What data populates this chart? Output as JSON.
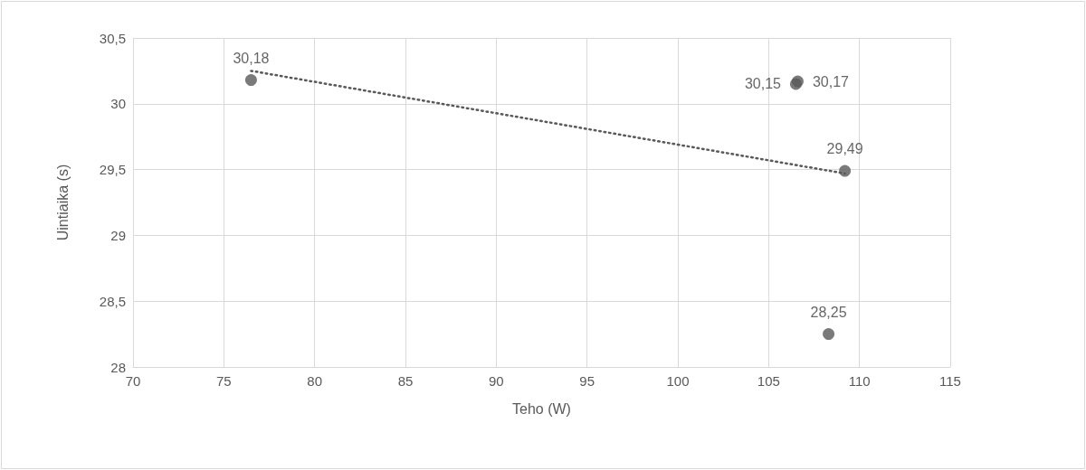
{
  "chart_data": {
    "type": "scatter",
    "xlabel": "Teho (W)",
    "ylabel": "Uintiaika (s)",
    "xlim": [
      70,
      115
    ],
    "xticks": [
      70,
      75,
      80,
      85,
      90,
      95,
      100,
      105,
      110,
      115
    ],
    "ylim": [
      28,
      30.5
    ],
    "yticks": [
      28,
      {
        "value": 28.5,
        "label": "28,5"
      },
      29,
      {
        "value": 29.5,
        "label": "29,5"
      },
      30,
      {
        "value": 30.5,
        "label": "30,5"
      }
    ],
    "grid": true,
    "marker": "circle",
    "series": [
      {
        "color": "#595959",
        "x": [
          76.5,
          106.5,
          106.6,
          109.2,
          108.3
        ],
        "values": [
          30.18,
          30.15,
          30.17,
          29.49,
          28.25
        ],
        "value_labels": [
          "30,18",
          "30,15",
          "30,17",
          "29,49",
          "28,25"
        ]
      },
      {
        "type": "line",
        "color": "#595959",
        "marker": "none",
        "line_style": "dotted",
        "x": [
          76.5,
          109.2
        ],
        "values": [
          30.25,
          29.47
        ]
      }
    ]
  }
}
